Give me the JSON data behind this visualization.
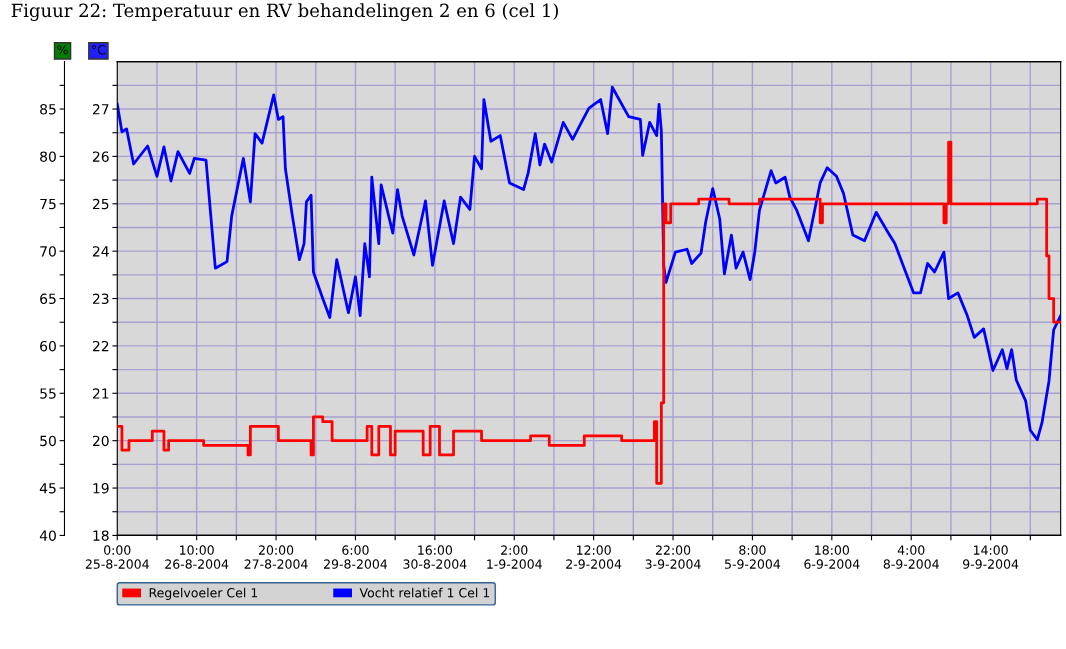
{
  "chart_data": {
    "type": "line",
    "title": "Figuur 22: Temperatuur en RV behandelingen 2 en 6 (cel 1)",
    "ylabel": "%",
    "y2label": "°C",
    "xlim": [
      "2004-08-25T00:00",
      "2004-09-10T20:00"
    ],
    "xticks": [
      {
        "value": "2004-08-25T00:00",
        "label": "0:00\n25-8-2004"
      },
      {
        "value": "2004-08-25T17:00",
        "label": null
      },
      {
        "value": "2004-08-26T10:00",
        "label": "10:00\n26-8-2004"
      },
      {
        "value": "2004-08-27T03:00",
        "label": null
      },
      {
        "value": "2004-08-27T20:00",
        "label": "20:00\n27-8-2004"
      },
      {
        "value": "2004-08-28T13:00",
        "label": null
      },
      {
        "value": "2004-08-29T06:00",
        "label": "6:00\n29-8-2004"
      },
      {
        "value": "2004-08-29T23:00",
        "label": null
      },
      {
        "value": "2004-08-30T16:00",
        "label": "16:00\n30-8-2004"
      },
      {
        "value": "2004-08-31T09:00",
        "label": null
      },
      {
        "value": "2004-09-01T02:00",
        "label": "2:00\n1-9-2004"
      },
      {
        "value": "2004-09-01T19:00",
        "label": null
      },
      {
        "value": "2004-09-02T12:00",
        "label": "12:00\n2-9-2004"
      },
      {
        "value": "2004-09-03T05:00",
        "label": null
      },
      {
        "value": "2004-09-03T22:00",
        "label": "22:00\n3-9-2004"
      },
      {
        "value": "2004-09-04T15:00",
        "label": null
      },
      {
        "value": "2004-09-05T08:00",
        "label": "8:00\n5-9-2004"
      },
      {
        "value": "2004-09-06T01:00",
        "label": null
      },
      {
        "value": "2004-09-06T18:00",
        "label": "18:00\n6-9-2004"
      },
      {
        "value": "2004-09-07T11:00",
        "label": null
      },
      {
        "value": "2004-09-08T04:00",
        "label": "4:00\n8-9-2004"
      },
      {
        "value": "2004-09-08T21:00",
        "label": null
      },
      {
        "value": "2004-09-09T14:00",
        "label": "14:00\n9-9-2004"
      },
      {
        "value": "2004-09-10T07:00",
        "label": null
      }
    ],
    "ylim": [
      40,
      90
    ],
    "yticks": [
      40,
      {
        "value": 42.5,
        "label": null
      },
      45,
      {
        "value": 47.5,
        "label": null
      },
      50,
      {
        "value": 52.5,
        "label": null
      },
      55,
      {
        "value": 57.5,
        "label": null
      },
      60,
      {
        "value": 62.5,
        "label": null
      },
      65,
      {
        "value": 67.5,
        "label": null
      },
      70,
      {
        "value": 72.5,
        "label": null
      },
      75,
      {
        "value": 77.5,
        "label": null
      },
      80,
      {
        "value": 82.5,
        "label": null
      },
      85,
      {
        "value": 87.5,
        "label": null
      }
    ],
    "y2lim": [
      18,
      28
    ],
    "y2ticks": [
      18,
      {
        "value": 18.5,
        "label": null
      },
      19,
      {
        "value": 19.5,
        "label": null
      },
      20,
      {
        "value": 20.5,
        "label": null
      },
      21,
      {
        "value": 21.5,
        "label": null
      },
      22,
      {
        "value": 22.5,
        "label": null
      },
      23,
      {
        "value": 23.5,
        "label": null
      },
      24,
      {
        "value": 24.5,
        "label": null
      },
      25,
      {
        "value": 25.5,
        "label": null
      },
      26,
      {
        "value": 26.5,
        "label": null
      },
      27,
      {
        "value": 27.5,
        "label": null
      }
    ],
    "grid": true,
    "legend": "bottom",
    "marker": "none",
    "line_style": "solid",
    "series": [
      {
        "name": "Regelvoeler Cel 1",
        "color": "#ff0000",
        "axis": "y2",
        "type": "step",
        "x": [
          "2004-08-25T00:00",
          "2004-08-25T02:00",
          "2004-08-25T05:00",
          "2004-08-25T11:00",
          "2004-08-25T15:00",
          "2004-08-25T19:00",
          "2004-08-25T20:00",
          "2004-08-25T22:00",
          "2004-08-26T13:00",
          "2004-08-27T08:00",
          "2004-08-27T09:00",
          "2004-08-27T17:00",
          "2004-08-27T21:00",
          "2004-08-28T11:00",
          "2004-08-28T12:00",
          "2004-08-28T16:00",
          "2004-08-28T20:00",
          "2004-08-29T11:00",
          "2004-08-29T13:00",
          "2004-08-29T16:00",
          "2004-08-29T21:00",
          "2004-08-29T23:00",
          "2004-08-30T11:00",
          "2004-08-30T14:00",
          "2004-08-30T18:00",
          "2004-08-31T00:00",
          "2004-08-31T12:00",
          "2004-09-01T09:00",
          "2004-09-01T17:00",
          "2004-09-02T08:00",
          "2004-09-03T00:00",
          "2004-09-03T13:00",
          "2004-09-03T14:00",
          "2004-09-03T15:00",
          "2004-09-03T16:00",
          "2004-09-03T17:00",
          "2004-09-03T18:00",
          "2004-09-03T19:00",
          "2004-09-03T21:00",
          "2004-09-04T09:00",
          "2004-09-04T22:00",
          "2004-09-05T11:00",
          "2004-09-06T13:00",
          "2004-09-06T14:00",
          "2004-09-07T09:00",
          "2004-09-08T06:00",
          "2004-09-08T18:00",
          "2004-09-08T19:00",
          "2004-09-08T20:00",
          "2004-09-08T21:00",
          "2004-09-09T12:00",
          "2004-09-10T01:00",
          "2004-09-10T10:00",
          "2004-09-10T13:00",
          "2004-09-10T14:00",
          "2004-09-10T15:00",
          "2004-09-10T17:00",
          "2004-09-10T20:00"
        ],
        "values": [
          20.3,
          19.8,
          20.0,
          20.0,
          20.2,
          20.2,
          19.8,
          20.0,
          19.9,
          19.7,
          20.3,
          20.3,
          20.0,
          19.7,
          20.5,
          20.4,
          20.0,
          20.3,
          19.7,
          20.3,
          19.7,
          20.2,
          19.7,
          20.3,
          19.7,
          20.2,
          20.0,
          20.1,
          19.9,
          20.1,
          20.0,
          20.0,
          20.4,
          19.1,
          19.1,
          20.8,
          25.0,
          24.6,
          25.0,
          25.1,
          25.0,
          25.1,
          24.6,
          25.0,
          25.0,
          25.0,
          24.6,
          25.0,
          26.3,
          25.0,
          25.0,
          25.0,
          25.1,
          25.1,
          23.9,
          23.0,
          22.5,
          22.5
        ]
      },
      {
        "name": "Vocht relatief 1 Cel 1",
        "color": "#0000ff",
        "axis": "y",
        "x": [
          "2004-08-25T00:00",
          "2004-08-25T02:00",
          "2004-08-25T04:00",
          "2004-08-25T07:00",
          "2004-08-25T13:00",
          "2004-08-25T17:00",
          "2004-08-25T20:00",
          "2004-08-25T23:00",
          "2004-08-26T02:00",
          "2004-08-26T07:00",
          "2004-08-26T09:00",
          "2004-08-26T14:00",
          "2004-08-26T18:00",
          "2004-08-26T23:00",
          "2004-08-27T01:00",
          "2004-08-27T06:00",
          "2004-08-27T09:00",
          "2004-08-27T11:00",
          "2004-08-27T14:00",
          "2004-08-27T19:00",
          "2004-08-27T21:00",
          "2004-08-27T23:00",
          "2004-08-28T00:00",
          "2004-08-28T03:00",
          "2004-08-28T06:00",
          "2004-08-28T08:00",
          "2004-08-28T09:00",
          "2004-08-28T11:00",
          "2004-08-28T12:00",
          "2004-08-28T16:00",
          "2004-08-28T19:00",
          "2004-08-28T22:00",
          "2004-08-29T03:00",
          "2004-08-29T06:00",
          "2004-08-29T08:00",
          "2004-08-29T10:00",
          "2004-08-29T12:00",
          "2004-08-29T13:00",
          "2004-08-29T16:00",
          "2004-08-29T17:00",
          "2004-08-29T22:00",
          "2004-08-30T00:00",
          "2004-08-30T02:00",
          "2004-08-30T07:00",
          "2004-08-30T12:00",
          "2004-08-30T15:00",
          "2004-08-30T20:00",
          "2004-08-31T00:00",
          "2004-08-31T03:00",
          "2004-08-31T07:00",
          "2004-08-31T09:00",
          "2004-08-31T12:00",
          "2004-08-31T13:00",
          "2004-08-31T16:00",
          "2004-08-31T20:00",
          "2004-09-01T00:00",
          "2004-09-01T06:00",
          "2004-09-01T08:00",
          "2004-09-01T11:00",
          "2004-09-01T13:00",
          "2004-09-01T15:00",
          "2004-09-01T18:00",
          "2004-09-01T23:00",
          "2004-09-02T03:00",
          "2004-09-02T07:00",
          "2004-09-02T10:00",
          "2004-09-02T15:00",
          "2004-09-02T18:00",
          "2004-09-02T20:00",
          "2004-09-03T03:00",
          "2004-09-03T08:00",
          "2004-09-03T09:00",
          "2004-09-03T12:00",
          "2004-09-03T15:00",
          "2004-09-03T16:00",
          "2004-09-03T17:00",
          "2004-09-03T18:00",
          "2004-09-03T19:00",
          "2004-09-03T23:00",
          "2004-09-04T04:00",
          "2004-09-04T06:00",
          "2004-09-04T10:00",
          "2004-09-04T12:00",
          "2004-09-04T15:00",
          "2004-09-04T18:00",
          "2004-09-04T20:00",
          "2004-09-04T23:00",
          "2004-09-05T01:00",
          "2004-09-05T04:00",
          "2004-09-05T07:00",
          "2004-09-05T09:00",
          "2004-09-05T11:00",
          "2004-09-05T16:00",
          "2004-09-05T18:00",
          "2004-09-05T22:00",
          "2004-09-06T00:00",
          "2004-09-06T03:00",
          "2004-09-06T08:00",
          "2004-09-06T13:00",
          "2004-09-06T16:00",
          "2004-09-06T20:00",
          "2004-09-06T23:00",
          "2004-09-07T03:00",
          "2004-09-07T08:00",
          "2004-09-07T13:00",
          "2004-09-07T18:00",
          "2004-09-07T21:00",
          "2004-09-08T01:00",
          "2004-09-08T05:00",
          "2004-09-08T08:00",
          "2004-09-08T11:00",
          "2004-09-08T14:00",
          "2004-09-08T18:00",
          "2004-09-08T20:00",
          "2004-09-09T00:00",
          "2004-09-09T04:00",
          "2004-09-09T07:00",
          "2004-09-09T11:00",
          "2004-09-09T15:00",
          "2004-09-09T19:00",
          "2004-09-09T21:00",
          "2004-09-09T23:00",
          "2004-09-10T01:00",
          "2004-09-10T05:00",
          "2004-09-10T07:00",
          "2004-09-10T10:00",
          "2004-09-10T12:00",
          "2004-09-10T15:00",
          "2004-09-10T17:00",
          "2004-09-10T20:00"
        ],
        "values": [
          85.5,
          82.6,
          82.9,
          79.2,
          81.1,
          77.9,
          81.0,
          77.4,
          80.5,
          78.2,
          79.8,
          79.6,
          68.2,
          68.9,
          73.7,
          79.8,
          75.2,
          82.4,
          81.4,
          86.5,
          83.9,
          84.2,
          78.7,
          73.7,
          69.1,
          70.8,
          75.2,
          75.9,
          67.8,
          65.0,
          63.0,
          69.1,
          63.5,
          67.3,
          63.2,
          70.8,
          67.3,
          77.8,
          70.8,
          77.0,
          71.9,
          76.5,
          73.7,
          69.6,
          75.3,
          68.5,
          75.3,
          70.8,
          75.7,
          74.4,
          80.0,
          78.7,
          86.0,
          81.6,
          82.2,
          77.2,
          76.5,
          78.3,
          82.4,
          79.1,
          81.3,
          79.4,
          83.6,
          81.8,
          83.7,
          85.1,
          86.0,
          82.4,
          87.3,
          84.2,
          83.9,
          80.1,
          83.6,
          82.2,
          85.5,
          82.7,
          68.5,
          66.7,
          69.9,
          70.2,
          68.7,
          69.8,
          73.1,
          76.6,
          73.4,
          67.6,
          71.7,
          68.2,
          69.9,
          67.0,
          69.9,
          74.3,
          78.5,
          77.2,
          77.8,
          75.7,
          74.3,
          71.1,
          77.2,
          78.8,
          77.9,
          76.1,
          71.7,
          71.1,
          74.1,
          72.0,
          70.8,
          68.2,
          65.6,
          65.6,
          68.7,
          67.8,
          69.9,
          65.0,
          65.6,
          63.2,
          60.9,
          61.8,
          57.4,
          59.6,
          57.6,
          59.6,
          56.4,
          54.2,
          51.1,
          50.1,
          51.9,
          56.3,
          61.7,
          63.2
        ]
      }
    ]
  }
}
